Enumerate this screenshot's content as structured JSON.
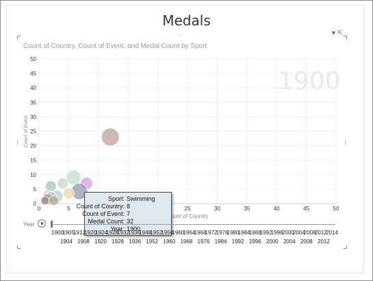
{
  "page": {
    "title": "Medals"
  },
  "toolbar": {
    "filter_icon": "filter-icon",
    "popout_icon": "popout-icon"
  },
  "chart_data": {
    "type": "scatter",
    "title": "Count of Country, Count of Event, and Medal Count by Sport",
    "xlabel": "Count of Country",
    "ylabel": "Count of Event",
    "xlim": [
      0,
      50
    ],
    "ylim": [
      0,
      50
    ],
    "xticks": [
      "0",
      "5",
      "10",
      "15",
      "20",
      "25",
      "30",
      "35",
      "40",
      "45",
      "50"
    ],
    "yticks": [
      "0",
      "5",
      "10",
      "15",
      "20",
      "25",
      "30",
      "35",
      "40",
      "45",
      "50"
    ],
    "grid": true,
    "play_axis_value": "1900",
    "points": [
      {
        "x": 12,
        "y": 23,
        "size": 13,
        "color": "#c4aaa4"
      },
      {
        "x": 5.8,
        "y": 9,
        "size": 11,
        "color": "#c7e4d2"
      },
      {
        "x": 8,
        "y": 7,
        "size": 9,
        "color": "#dba5e8"
      },
      {
        "x": 6.8,
        "y": 4.2,
        "size": 12,
        "color": "#9aa3ad"
      },
      {
        "x": 2,
        "y": 6,
        "size": 8,
        "color": "#a9ccc8"
      },
      {
        "x": 4,
        "y": 7,
        "size": 8,
        "color": "#c9dccc"
      },
      {
        "x": 5,
        "y": 3.5,
        "size": 8,
        "color": "#e8ddb0"
      },
      {
        "x": 1.5,
        "y": 3,
        "size": 7,
        "color": "#d9c7d9"
      },
      {
        "x": 3,
        "y": 2.5,
        "size": 9,
        "color": "#c2cfda"
      },
      {
        "x": 2,
        "y": 2,
        "size": 9,
        "color": "#bfc9c2"
      },
      {
        "x": 1.5,
        "y": 1.5,
        "size": 8,
        "color": "#9fa8a8"
      },
      {
        "x": 2.5,
        "y": 1,
        "size": 7,
        "color": "#b7ad99"
      },
      {
        "x": 1,
        "y": 1,
        "size": 6,
        "color": "#a58f7a"
      }
    ]
  },
  "tooltip": {
    "rows": [
      {
        "label": "Sport:",
        "value": "Swimming"
      },
      {
        "label": "Count of Country:",
        "value": "8"
      },
      {
        "label": "Count of Event:",
        "value": "7"
      },
      {
        "label": "Medal Count:",
        "value": "32"
      },
      {
        "label": "Year:",
        "value": "1900"
      }
    ]
  },
  "play_axis": {
    "label": "Year",
    "years_top": [
      "1900",
      "1905",
      "1912",
      "1920",
      "1924",
      "1928",
      "1932",
      "1936",
      "1948",
      "1952",
      "1956",
      "1960",
      "1964",
      "1968",
      "1972",
      "1976",
      "1980",
      "1984",
      "1988",
      "1992",
      "1996",
      "2000",
      "2004",
      "2008",
      "2012",
      "2014"
    ],
    "years_bottom": [
      "1904",
      "1908",
      "1920",
      "1928",
      "1936",
      "1952",
      "1960",
      "1968",
      "1976",
      "1984",
      "1992",
      "1996",
      "2000",
      "2004",
      "2008",
      "2012"
    ]
  }
}
